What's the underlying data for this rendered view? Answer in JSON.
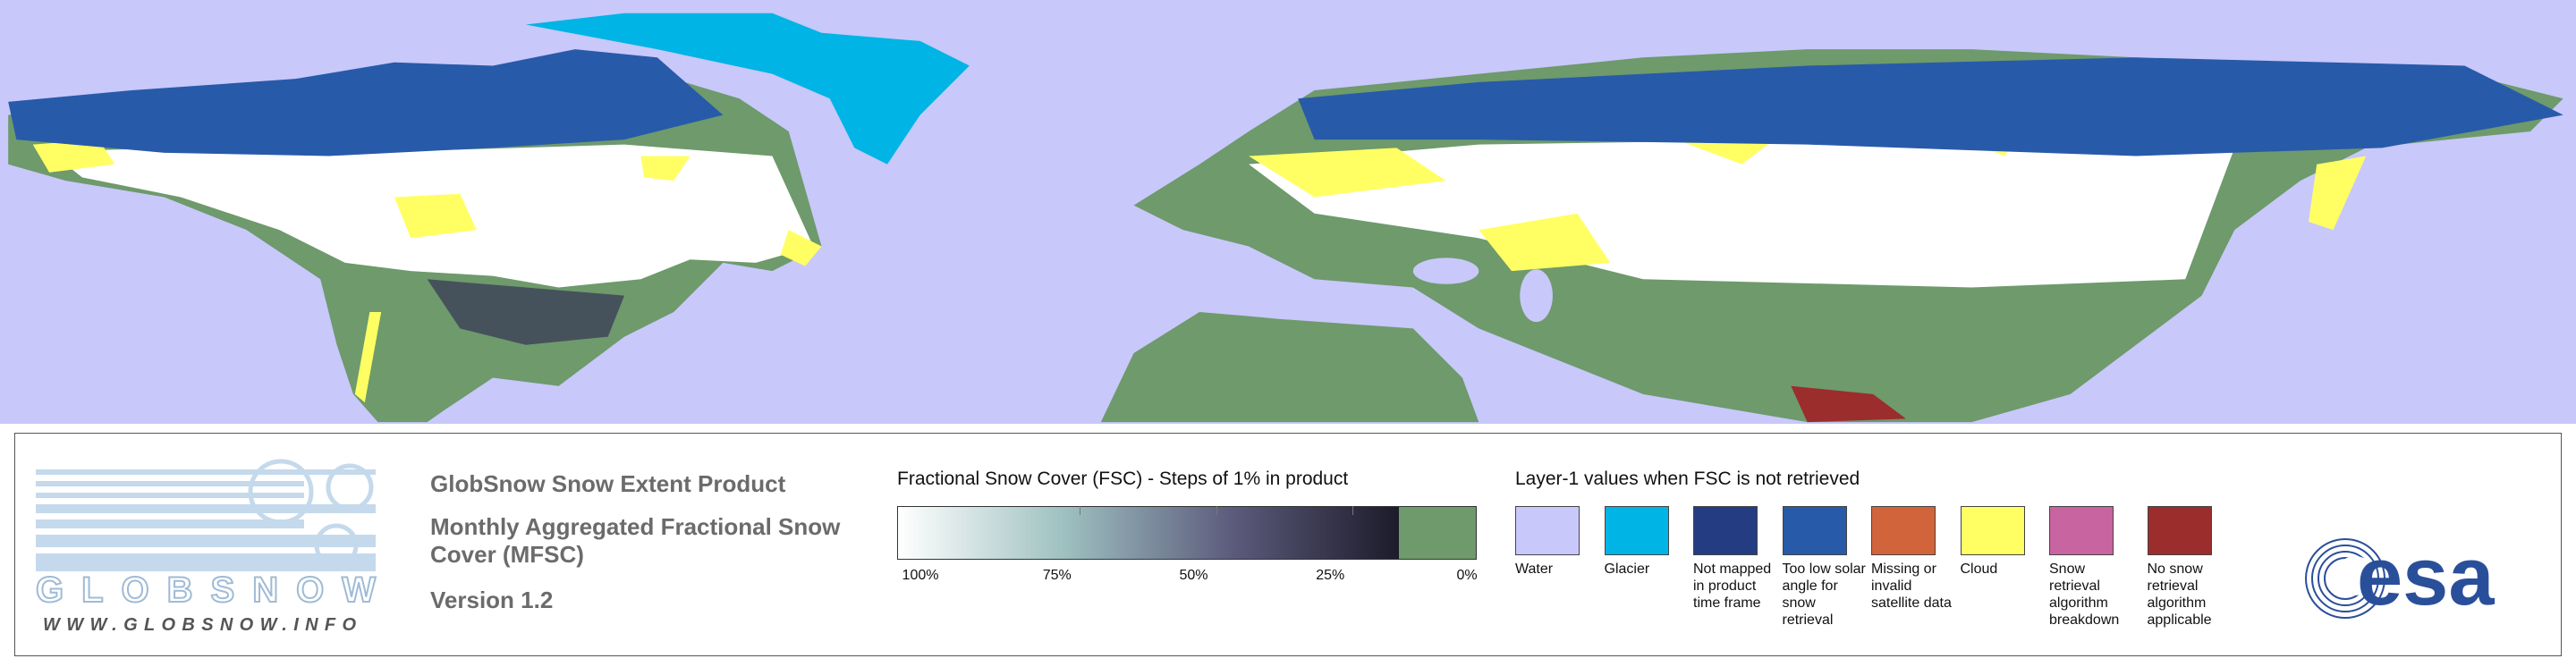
{
  "logo": {
    "name": "GLOBSNOW",
    "url": "WWW.GLOBSNOW.INFO"
  },
  "product": {
    "title": "GlobSnow Snow Extent Product",
    "subtitle": "Monthly Aggregated Fractional Snow Cover (MFSC)",
    "version": "Version 1.2"
  },
  "fsc_scale": {
    "title": "Fractional Snow Cover (FSC) - Steps of 1% in product",
    "labels": [
      "100%",
      "75%",
      "50%",
      "25%",
      "0%"
    ],
    "gradient_colors": [
      "#ffffff",
      "#9ec0c0",
      "#5c5b7c",
      "#1c1b2a"
    ],
    "no_snow_color": "#6e9a6c"
  },
  "layer1": {
    "title": "Layer-1 values when FSC is not retrieved",
    "items": [
      {
        "label": "Water",
        "color": "#c8c8fa"
      },
      {
        "label": "Glacier",
        "color": "#00b4e6"
      },
      {
        "label": "Not mapped in product time frame",
        "color": "#233c82"
      },
      {
        "label": "Too low solar angle for snow retrieval",
        "color": "#285aaa"
      },
      {
        "label": "Missing or invalid satellite data",
        "color": "#d2643c"
      },
      {
        "label": "Cloud",
        "color": "#ffff64"
      },
      {
        "label": "Snow retrieval algorithm breakdown",
        "color": "#c864a0"
      },
      {
        "label": "No snow retrieval algorithm applicable",
        "color": "#9b2d2d"
      }
    ]
  },
  "agency": "esa"
}
